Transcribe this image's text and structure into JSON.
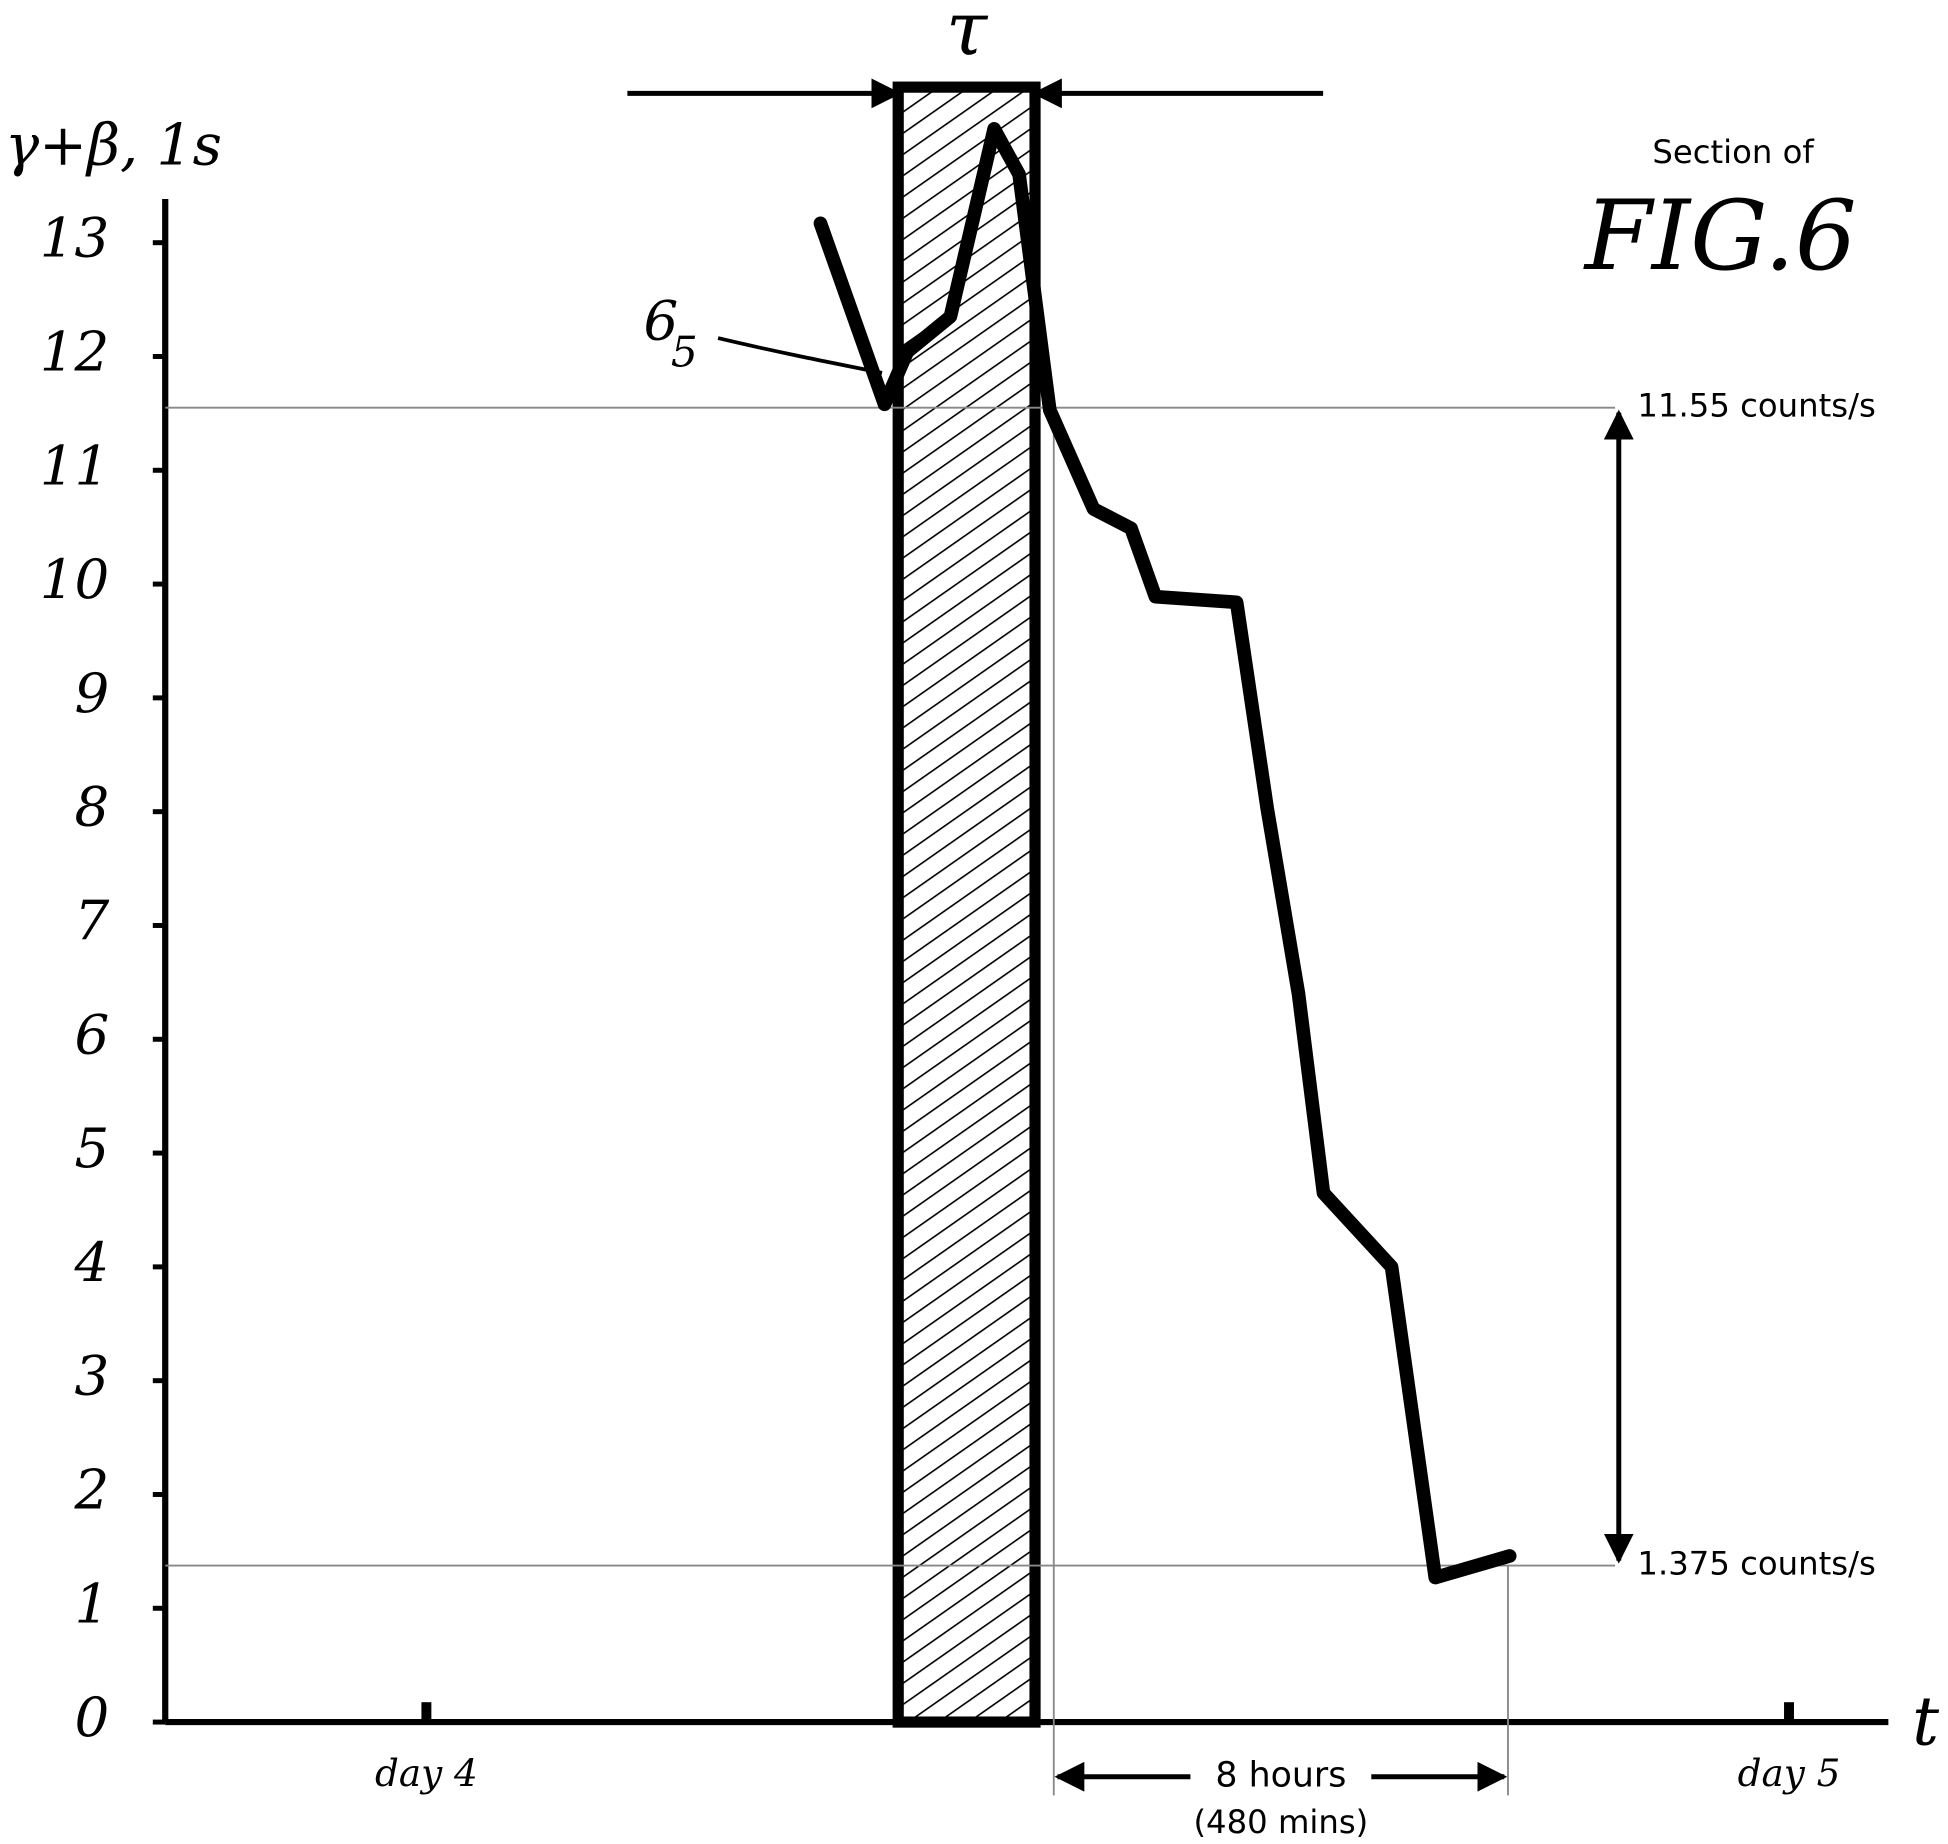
{
  "chart_data": {
    "type": "line",
    "title": "FIG.6",
    "subtitle": "Section of",
    "ylabel": "γ+β, 1s",
    "xlabel": "t",
    "x": [
      6.94,
      8.07,
      8.47,
      9.23,
      10.0,
      10.44,
      10.98,
      11.75,
      12.41,
      12.84,
      14.27,
      14.81,
      15.36,
      15.8,
      17.0,
      17.77,
      19.08
    ],
    "values": [
      13.17,
      11.58,
      12.04,
      12.35,
      14.0,
      13.6,
      11.53,
      10.66,
      10.49,
      9.89,
      9.84,
      8.03,
      6.4,
      4.65,
      4.0,
      1.27,
      1.46
    ],
    "color": "#000000",
    "xlim": [
      -4.6,
      25.75
    ],
    "ylim": [
      0,
      13.4
    ],
    "yticks": [
      0,
      1,
      2,
      3,
      4,
      5,
      6,
      7,
      8,
      9,
      10,
      11,
      12,
      13
    ],
    "xticks": [
      {
        "value": 0,
        "label": "day 4"
      },
      {
        "value": 24,
        "label": "day 5"
      }
    ],
    "band": {
      "x": [
        8.31,
        10.72
      ],
      "label": "τ"
    },
    "curve_label": "6",
    "curve_label_sub": "5",
    "reference_lines": [
      {
        "value": 11.55,
        "label": "11.55 counts/s"
      },
      {
        "value": 1.375,
        "label": "1.375 counts/s"
      }
    ],
    "span": {
      "x": [
        11.05,
        19.05
      ],
      "label": "8 hours",
      "sublabel": "(480 mins)"
    }
  }
}
